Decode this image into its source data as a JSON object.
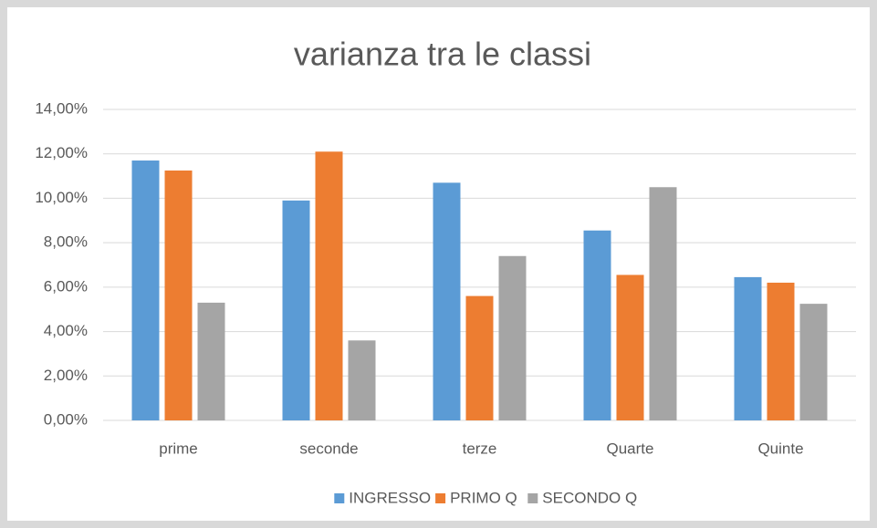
{
  "chart_data": {
    "type": "bar",
    "title": "varianza tra le classi",
    "categories": [
      "prime",
      "seconde",
      "terze",
      "Quarte",
      "Quinte"
    ],
    "series": [
      {
        "name": "INGRESSO",
        "color": "#5b9bd5",
        "values": [
          11.7,
          9.9,
          10.7,
          8.55,
          6.45
        ]
      },
      {
        "name": "PRIMO Q",
        "color": "#ed7d31",
        "values": [
          11.25,
          12.1,
          5.6,
          6.55,
          6.2
        ]
      },
      {
        "name": "SECONDO Q",
        "color": "#a5a5a5",
        "values": [
          5.3,
          3.6,
          7.4,
          10.5,
          5.25
        ]
      }
    ],
    "ylim": [
      0,
      14
    ],
    "yticks": [
      {
        "value": 0,
        "label": "0,00%"
      },
      {
        "value": 2,
        "label": "2,00%"
      },
      {
        "value": 4,
        "label": "4,00%"
      },
      {
        "value": 6,
        "label": "6,00%"
      },
      {
        "value": 8,
        "label": "8,00%"
      },
      {
        "value": 10,
        "label": "10,00%"
      },
      {
        "value": 12,
        "label": "12,00%"
      },
      {
        "value": 14,
        "label": "14,00%"
      }
    ],
    "grid": true,
    "legend": "bottom"
  }
}
